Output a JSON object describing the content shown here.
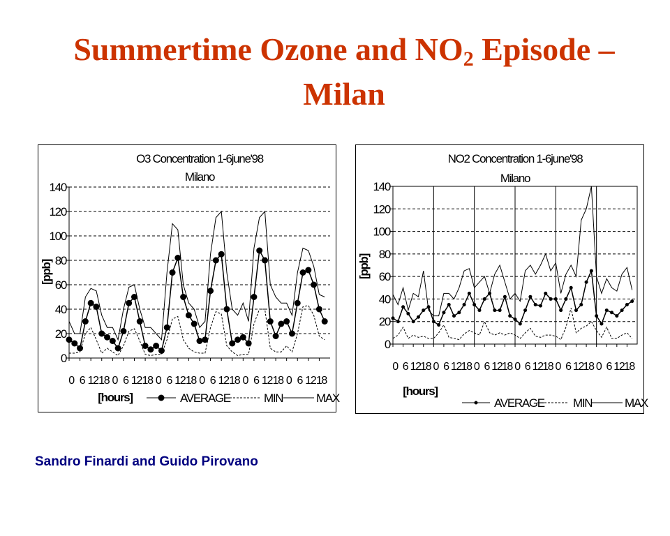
{
  "slide": {
    "title_main": "Summertime Ozone and NO",
    "title_sub": "2",
    "title_tail": " Episode –",
    "title_line2": "Milan",
    "author": "Sandro Finardi and Guido Pirovano"
  },
  "chart_data": [
    {
      "type": "line",
      "title": "O3 Concentration 1-6june'98",
      "subtitle": "Milano",
      "xlabel": "[hours]",
      "ylabel": "[ppb]",
      "ylim": [
        0,
        140
      ],
      "yticks": [
        0,
        20,
        40,
        60,
        80,
        100,
        120,
        140
      ],
      "xlim": [
        0,
        144
      ],
      "xtick_step_hours": 6,
      "xtick_labels": [
        "0",
        "6",
        "12",
        "18",
        "0",
        "6",
        "12",
        "18",
        "0",
        "6",
        "12",
        "18",
        "0",
        "6",
        "12",
        "18",
        "0",
        "6",
        "12",
        "18",
        "0",
        "6",
        "12",
        "18"
      ],
      "x_step_hours": 3,
      "grid": "horizontal dashed",
      "legend": "bottom",
      "series": [
        {
          "name": "AVERAGE",
          "style": "solid-marker",
          "values": [
            15,
            12,
            8,
            30,
            45,
            42,
            20,
            17,
            14,
            8,
            22,
            45,
            50,
            30,
            10,
            7,
            10,
            6,
            25,
            70,
            82,
            50,
            35,
            28,
            14,
            15,
            55,
            80,
            85,
            40,
            12,
            15,
            17,
            12,
            50,
            88,
            80,
            30,
            18,
            28,
            30,
            20,
            45,
            70,
            72,
            60,
            40,
            30
          ]
        },
        {
          "name": "MIN",
          "style": "dashed",
          "values": [
            4,
            4,
            5,
            20,
            25,
            15,
            4,
            8,
            5,
            2,
            10,
            22,
            24,
            14,
            3,
            2,
            3,
            3,
            15,
            32,
            34,
            15,
            8,
            5,
            4,
            4,
            25,
            38,
            36,
            10,
            5,
            2,
            3,
            3,
            28,
            40,
            40,
            8,
            5,
            5,
            10,
            5,
            20,
            42,
            43,
            35,
            18,
            15
          ]
        },
        {
          "name": "MAX",
          "style": "solid",
          "values": [
            30,
            20,
            20,
            50,
            57,
            55,
            35,
            25,
            25,
            15,
            40,
            58,
            60,
            40,
            25,
            25,
            20,
            15,
            70,
            110,
            105,
            60,
            45,
            40,
            25,
            30,
            85,
            115,
            120,
            70,
            40,
            35,
            45,
            30,
            90,
            115,
            120,
            60,
            50,
            45,
            45,
            35,
            70,
            90,
            88,
            75,
            52,
            50
          ]
        }
      ]
    },
    {
      "type": "line",
      "title": "NO2 Concentration 1-6june'98",
      "subtitle": "Milano",
      "xlabel": "[hours]",
      "ylabel": "[ppb]",
      "ylim": [
        0,
        140
      ],
      "yticks": [
        0,
        20,
        40,
        60,
        80,
        100,
        120,
        140
      ],
      "xlim": [
        0,
        144
      ],
      "xtick_step_hours": 6,
      "xtick_labels": [
        "0",
        "6",
        "12",
        "18",
        "0",
        "6",
        "12",
        "18",
        "0",
        "6",
        "12",
        "18",
        "0",
        "6",
        "12",
        "18",
        "0",
        "6",
        "12",
        "18",
        "0",
        "6",
        "12",
        "18"
      ],
      "x_step_hours": 3,
      "grid": "horizontal dashed, vertical daily",
      "legend": "bottom",
      "series": [
        {
          "name": "AVERAGE",
          "style": "solid-marker",
          "values": [
            23,
            20,
            33,
            27,
            20,
            24,
            30,
            33,
            20,
            17,
            28,
            35,
            25,
            28,
            35,
            45,
            35,
            30,
            40,
            45,
            30,
            30,
            42,
            25,
            22,
            18,
            30,
            42,
            35,
            34,
            45,
            40,
            40,
            30,
            40,
            50,
            30,
            35,
            55,
            65,
            25,
            18,
            30,
            28,
            25,
            30,
            35,
            38
          ]
        },
        {
          "name": "MIN",
          "style": "dashed",
          "values": [
            5,
            8,
            15,
            5,
            8,
            6,
            7,
            5,
            5,
            10,
            17,
            6,
            5,
            4,
            9,
            12,
            10,
            8,
            20,
            10,
            8,
            10,
            8,
            10,
            8,
            5,
            10,
            14,
            7,
            6,
            8,
            8,
            7,
            4,
            15,
            32,
            10,
            14,
            16,
            20,
            12,
            6,
            15,
            5,
            5,
            8,
            10,
            5
          ]
        },
        {
          "name": "MAX",
          "style": "solid",
          "values": [
            44,
            35,
            50,
            30,
            45,
            42,
            65,
            30,
            25,
            25,
            45,
            45,
            40,
            50,
            65,
            67,
            50,
            55,
            60,
            45,
            62,
            70,
            55,
            40,
            45,
            38,
            65,
            70,
            62,
            70,
            80,
            65,
            72,
            45,
            62,
            70,
            60,
            110,
            120,
            140,
            60,
            45,
            58,
            50,
            47,
            62,
            68,
            48
          ]
        }
      ]
    }
  ]
}
